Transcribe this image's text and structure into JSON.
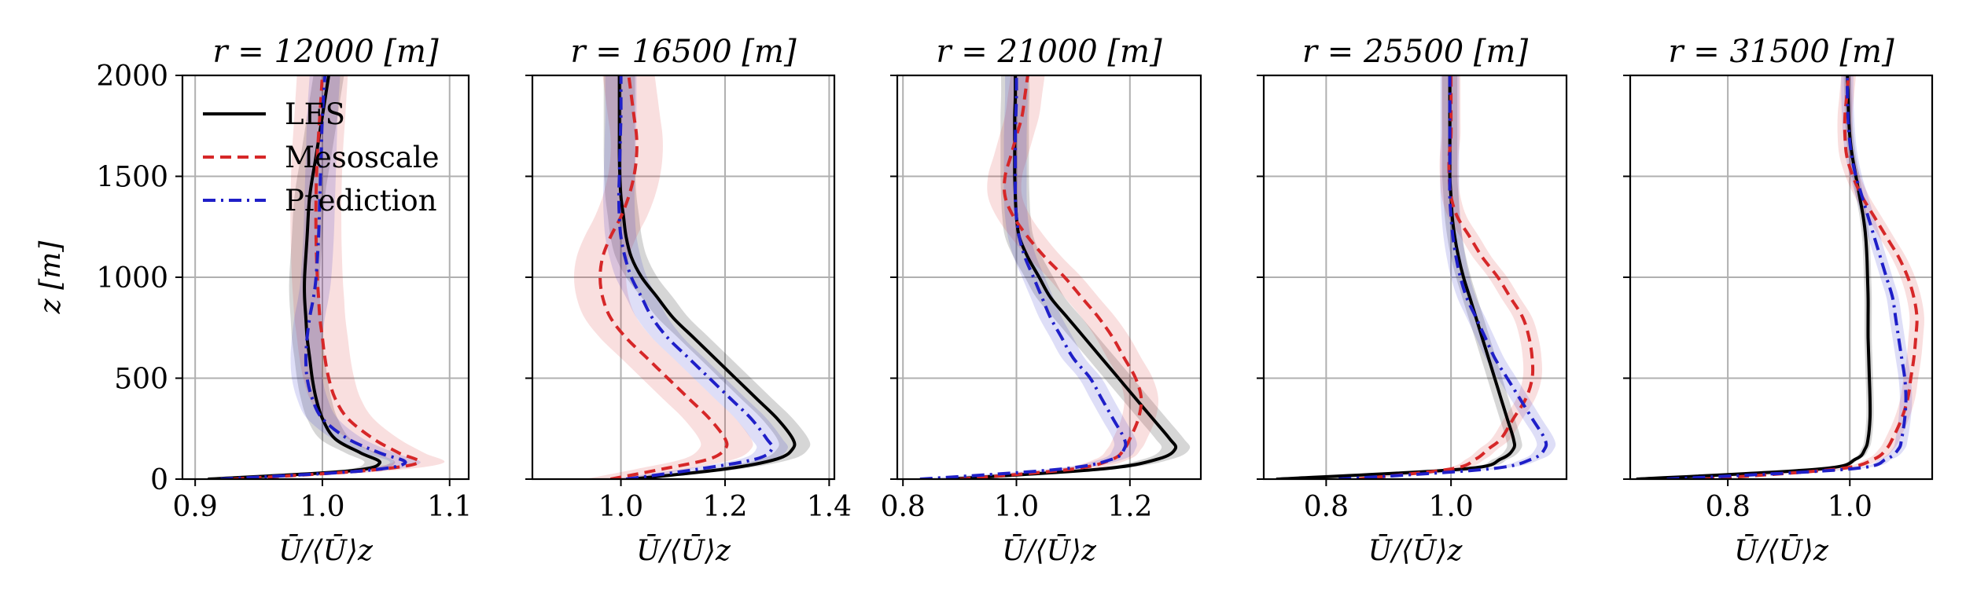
{
  "figure": {
    "colors": {
      "les": "#000000",
      "mesoscale": "#d62728",
      "prediction": "#1f1fc8"
    },
    "legend": {
      "placement": "top-left of first panel",
      "entries": [
        "LES",
        "Mesoscale",
        "Prediction"
      ]
    },
    "ylabel": "z [m]",
    "xlabel": "Ū/⟨Ū⟩z"
  },
  "chart_data": [
    {
      "type": "line",
      "title": "r = 12000 [m]",
      "xlabel": "Ū/⟨Ū⟩z",
      "ylabel": "z [m]",
      "xlim": [
        0.89,
        1.115
      ],
      "ylim": [
        0,
        2000
      ],
      "grid": true,
      "legend": "top-left",
      "xticks": [
        0.9,
        1.0,
        1.1
      ],
      "xticklabels": [
        "0.9",
        "1.0",
        "1.1"
      ],
      "yticks": [
        0,
        500,
        1000,
        1500,
        2000
      ],
      "yticklabels": [
        "0",
        "500",
        "1000",
        "1500",
        "2000"
      ],
      "z": [
        0,
        40,
        80,
        130,
        200,
        300,
        400,
        500,
        600,
        700,
        800,
        900,
        1000,
        1200,
        1400,
        1600,
        1800,
        2000
      ],
      "series": [
        {
          "name": "LES",
          "style": "solid",
          "band": 0.012,
          "x": [
            0.91,
            1.02,
            1.045,
            1.03,
            1.01,
            1.0,
            0.995,
            0.992,
            0.99,
            0.988,
            0.987,
            0.986,
            0.986,
            0.988,
            0.99,
            0.995,
            1.0,
            1.005
          ]
        },
        {
          "name": "Mesoscale",
          "style": "dashed",
          "band": 0.02,
          "x": [
            0.93,
            1.03,
            1.075,
            1.06,
            1.04,
            1.02,
            1.01,
            1.005,
            1.002,
            1.0,
            0.998,
            0.997,
            0.996,
            0.995,
            0.995,
            0.996,
            0.998,
            1.0
          ]
        },
        {
          "name": "Prediction",
          "style": "dashdot",
          "band": 0.012,
          "x": [
            0.92,
            1.03,
            1.065,
            1.045,
            1.02,
            1.0,
            0.992,
            0.988,
            0.987,
            0.988,
            0.99,
            0.993,
            0.995,
            0.997,
            0.998,
            0.999,
            1.0,
            1.002
          ]
        }
      ]
    },
    {
      "type": "line",
      "title": "r = 16500 [m]",
      "xlabel": "Ū/⟨Ū⟩z",
      "ylabel": "",
      "xlim": [
        0.83,
        1.41
      ],
      "ylim": [
        0,
        2000
      ],
      "grid": true,
      "xticks": [
        1.0,
        1.2,
        1.4
      ],
      "xticklabels": [
        "1.0",
        "1.2",
        "1.4"
      ],
      "yticks": [
        0,
        500,
        1000,
        1500,
        2000
      ],
      "yticklabels": [],
      "z": [
        0,
        50,
        100,
        150,
        200,
        300,
        400,
        500,
        600,
        700,
        800,
        900,
        1000,
        1100,
        1200,
        1300,
        1400,
        1500,
        1600,
        1700,
        1800,
        1900,
        2000
      ],
      "series": [
        {
          "name": "LES",
          "style": "solid",
          "band": 0.03,
          "x": [
            1.02,
            1.2,
            1.3,
            1.33,
            1.33,
            1.3,
            1.26,
            1.22,
            1.18,
            1.14,
            1.1,
            1.07,
            1.04,
            1.02,
            1.01,
            1.005,
            1.0,
            0.998,
            0.997,
            0.997,
            0.997,
            0.997,
            0.997
          ]
        },
        {
          "name": "Mesoscale",
          "style": "dashed",
          "band": 0.05,
          "x": [
            0.98,
            1.08,
            1.17,
            1.2,
            1.2,
            1.17,
            1.13,
            1.09,
            1.05,
            1.01,
            0.98,
            0.965,
            0.96,
            0.965,
            0.98,
            1.0,
            1.015,
            1.025,
            1.03,
            1.03,
            1.025,
            1.02,
            1.015
          ]
        },
        {
          "name": "Prediction",
          "style": "dashdot",
          "band": 0.03,
          "x": [
            1.01,
            1.15,
            1.26,
            1.29,
            1.28,
            1.25,
            1.21,
            1.17,
            1.13,
            1.09,
            1.06,
            1.04,
            1.02,
            1.008,
            1.0,
            0.997,
            0.996,
            0.997,
            0.998,
            0.999,
            1.0,
            1.0,
            1.0
          ]
        }
      ]
    },
    {
      "type": "line",
      "title": "r = 21000 [m]",
      "xlabel": "Ū/⟨Ū⟩z",
      "ylabel": "",
      "xlim": [
        0.79,
        1.325
      ],
      "ylim": [
        0,
        2000
      ],
      "grid": true,
      "xticks": [
        0.8,
        1.0,
        1.2
      ],
      "xticklabels": [
        "0.8",
        "1.0",
        "1.2"
      ],
      "yticks": [
        0,
        500,
        1000,
        1500,
        2000
      ],
      "yticklabels": [],
      "z": [
        0,
        50,
        100,
        150,
        200,
        300,
        400,
        500,
        600,
        700,
        800,
        900,
        1000,
        1100,
        1200,
        1300,
        1400,
        1500,
        1600,
        1700,
        1800,
        1900,
        2000
      ],
      "series": [
        {
          "name": "LES",
          "style": "solid",
          "band": 0.025,
          "x": [
            0.88,
            1.15,
            1.25,
            1.28,
            1.27,
            1.24,
            1.21,
            1.18,
            1.15,
            1.12,
            1.09,
            1.06,
            1.04,
            1.02,
            1.005,
            1.0,
            0.998,
            0.997,
            0.997,
            0.997,
            0.997,
            0.998,
            0.998
          ]
        },
        {
          "name": "Mesoscale",
          "style": "dashed",
          "band": 0.03,
          "x": [
            0.9,
            1.1,
            1.17,
            1.19,
            1.2,
            1.215,
            1.22,
            1.21,
            1.19,
            1.17,
            1.145,
            1.115,
            1.085,
            1.05,
            1.02,
            0.995,
            0.98,
            0.98,
            0.99,
            1.0,
            1.01,
            1.015,
            1.02
          ]
        },
        {
          "name": "Prediction",
          "style": "dashdot",
          "band": 0.02,
          "x": [
            0.83,
            1.08,
            1.17,
            1.19,
            1.19,
            1.17,
            1.15,
            1.13,
            1.1,
            1.08,
            1.06,
            1.045,
            1.03,
            1.015,
            1.005,
            1.0,
            0.998,
            0.998,
            0.998,
            0.998,
            0.999,
            1.0,
            1.0
          ]
        }
      ]
    },
    {
      "type": "line",
      "title": "r = 25500 [m]",
      "xlabel": "Ū/⟨Ū⟩z",
      "ylabel": "",
      "xlim": [
        0.7,
        1.185
      ],
      "ylim": [
        0,
        2000
      ],
      "grid": true,
      "xticks": [
        0.8,
        1.0
      ],
      "xticklabels": [
        "0.8",
        "1.0"
      ],
      "yticks": [
        0,
        500,
        1000,
        1500,
        2000
      ],
      "yticklabels": [],
      "z": [
        0,
        50,
        100,
        150,
        200,
        300,
        400,
        500,
        600,
        700,
        800,
        900,
        1000,
        1100,
        1200,
        1300,
        1400,
        1500,
        1600,
        1700,
        1800,
        1900,
        2000
      ],
      "series": [
        {
          "name": "LES",
          "style": "solid",
          "band": 0.012,
          "x": [
            0.72,
            1.02,
            1.08,
            1.1,
            1.1,
            1.09,
            1.08,
            1.07,
            1.06,
            1.05,
            1.04,
            1.03,
            1.02,
            1.012,
            1.006,
            1.002,
            1.0,
            0.998,
            0.998,
            0.998,
            0.998,
            0.998,
            0.998
          ]
        },
        {
          "name": "Mesoscale",
          "style": "dashed",
          "band": 0.015,
          "x": [
            0.85,
            1.0,
            1.04,
            1.06,
            1.08,
            1.1,
            1.12,
            1.13,
            1.13,
            1.125,
            1.115,
            1.095,
            1.075,
            1.05,
            1.03,
            1.01,
            1.0,
            0.997,
            0.997,
            1.0,
            1.0,
            1.0,
            1.0
          ]
        },
        {
          "name": "Prediction",
          "style": "dashdot",
          "band": 0.015,
          "x": [
            0.82,
            1.06,
            1.13,
            1.15,
            1.15,
            1.13,
            1.11,
            1.09,
            1.07,
            1.055,
            1.04,
            1.025,
            1.015,
            1.008,
            1.003,
            1.0,
            0.998,
            0.998,
            0.998,
            0.998,
            0.998,
            0.998,
            0.998
          ]
        }
      ]
    },
    {
      "type": "line",
      "title": "r = 31500 [m]",
      "xlabel": "Ū/⟨Ū⟩z",
      "ylabel": "",
      "xlim": [
        0.64,
        1.135
      ],
      "ylim": [
        0,
        2000
      ],
      "grid": true,
      "xticks": [
        0.8,
        1.0
      ],
      "xticklabels": [
        "0.8",
        "1.0"
      ],
      "yticks": [
        0,
        500,
        1000,
        1500,
        2000
      ],
      "yticklabels": [],
      "z": [
        0,
        50,
        100,
        150,
        200,
        300,
        400,
        500,
        600,
        700,
        800,
        900,
        1000,
        1100,
        1200,
        1300,
        1400,
        1500,
        1600,
        1700,
        1800,
        1900,
        2000
      ],
      "series": [
        {
          "name": "LES",
          "style": "solid",
          "band": 0.006,
          "x": [
            0.65,
            0.95,
            1.01,
            1.025,
            1.03,
            1.033,
            1.033,
            1.032,
            1.031,
            1.03,
            1.03,
            1.03,
            1.029,
            1.028,
            1.026,
            1.022,
            1.016,
            1.01,
            1.004,
            1.0,
            0.998,
            0.997,
            0.996
          ]
        },
        {
          "name": "Mesoscale",
          "style": "dashed",
          "band": 0.012,
          "x": [
            0.76,
            0.98,
            1.04,
            1.06,
            1.07,
            1.085,
            1.095,
            1.1,
            1.105,
            1.108,
            1.11,
            1.105,
            1.095,
            1.08,
            1.06,
            1.04,
            1.02,
            1.005,
            0.995,
            0.992,
            0.992,
            0.995,
            0.998
          ]
        },
        {
          "name": "Prediction",
          "style": "dashdot",
          "band": 0.01,
          "x": [
            0.7,
            1.0,
            1.06,
            1.08,
            1.085,
            1.09,
            1.092,
            1.09,
            1.085,
            1.08,
            1.075,
            1.07,
            1.06,
            1.05,
            1.04,
            1.03,
            1.02,
            1.01,
            1.003,
            0.999,
            0.997,
            0.996,
            0.996
          ]
        }
      ]
    }
  ]
}
